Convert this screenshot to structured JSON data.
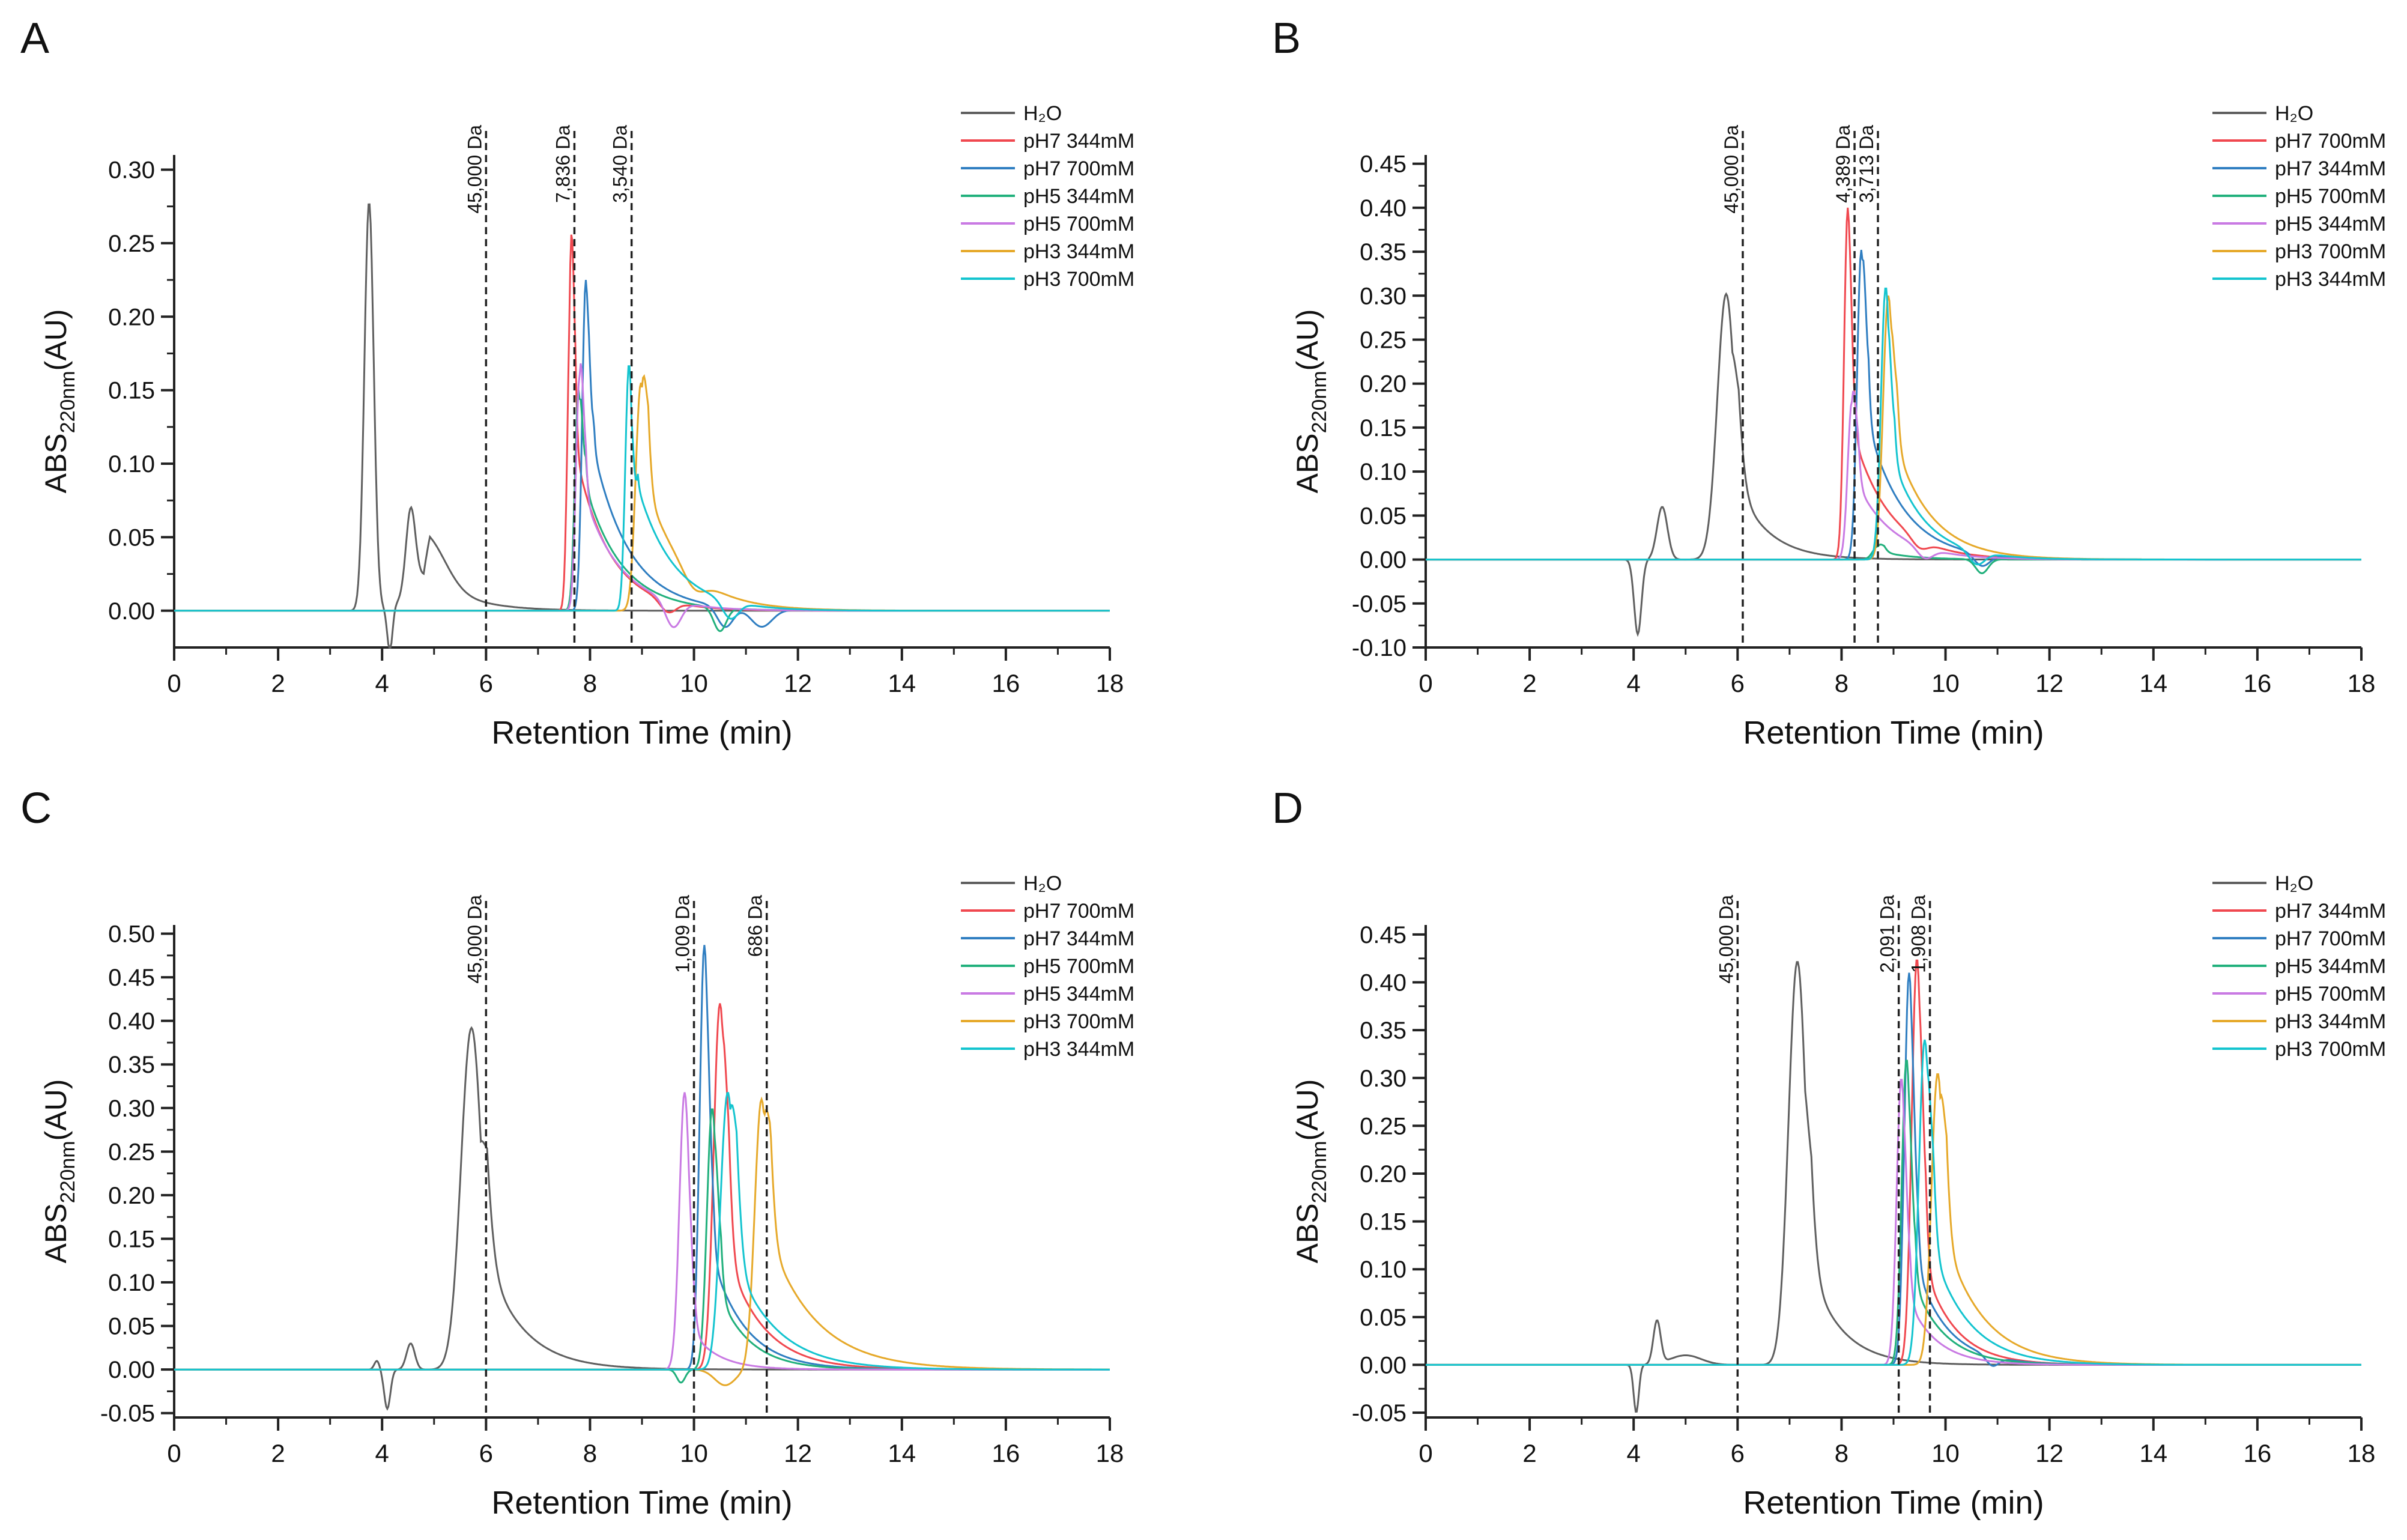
{
  "colors": {
    "H2O": "#5f5f5f",
    "red": "#f0484f",
    "blue": "#2f7ec1",
    "green": "#21b07c",
    "violet": "#c97ae3",
    "gold": "#e6a92a",
    "cyan": "#14c4cf"
  },
  "chart_data": [
    {
      "panel": "A",
      "type": "line",
      "xlabel": "Retention Time (min)",
      "ylabel_main": "ABS",
      "ylabel_sub": "220nm",
      "ylabel_unit": "(AU)",
      "xlim": [
        0,
        18
      ],
      "ylim": [
        -0.025,
        0.31
      ],
      "xticks": [
        0,
        2,
        4,
        6,
        8,
        10,
        12,
        14,
        16,
        18
      ],
      "yticks": [
        0.0,
        0.05,
        0.1,
        0.15,
        0.2,
        0.25,
        0.3
      ],
      "ytick_labels": [
        "0.00",
        "0.05",
        "0.10",
        "0.15",
        "0.20",
        "0.25",
        "0.30"
      ],
      "legend_position": "top-right",
      "grid": false,
      "markers": [
        {
          "x": 6.0,
          "label": "45,000 Da"
        },
        {
          "x": 7.7,
          "label": "7,836 Da"
        },
        {
          "x": 8.8,
          "label": "3,540 Da"
        }
      ],
      "series": [
        {
          "name": "H₂O",
          "color": "#5f5f5f",
          "peaks": [
            [
              3.75,
              0.278,
              0.09
            ],
            [
              4.55,
              0.055,
              0.09
            ],
            [
              4.9,
              0.025,
              0.35
            ]
          ],
          "dips": [
            [
              4.15,
              -0.03,
              0.05
            ]
          ],
          "tail": [
            4.8,
            0.03,
            0.7
          ],
          "noise": 0.0
        },
        {
          "name": "pH7 344mM",
          "color": "#f0484f",
          "peaks": [
            [
              7.63,
              0.218,
              0.06
            ]
          ],
          "tail": [
            7.6,
            0.13,
            0.65
          ],
          "dips": [
            [
              9.5,
              -0.008,
              0.15
            ]
          ]
        },
        {
          "name": "pH7 700mM",
          "color": "#2f7ec1",
          "peaks": [
            [
              7.92,
              0.225,
              0.07
            ]
          ],
          "tail": [
            7.95,
            0.13,
            0.7
          ],
          "dips": [
            [
              10.6,
              -0.014,
              0.15
            ],
            [
              11.3,
              -0.012,
              0.2
            ]
          ]
        },
        {
          "name": "pH5 344mM",
          "color": "#21b07c",
          "peaks": [
            [
              7.78,
              0.15,
              0.07
            ]
          ],
          "tail": [
            7.8,
            0.1,
            0.7
          ],
          "dips": [
            [
              10.5,
              -0.016,
              0.12
            ]
          ]
        },
        {
          "name": "pH5 700mM",
          "color": "#c97ae3",
          "peaks": [
            [
              7.8,
              0.16,
              0.07
            ]
          ],
          "tail": [
            7.8,
            0.09,
            0.7
          ],
          "dips": [
            [
              9.6,
              -0.018,
              0.15
            ]
          ]
        },
        {
          "name": "pH3 344mM",
          "color": "#e6a92a",
          "peaks": [
            [
              8.98,
              0.155,
              0.1
            ]
          ],
          "tail": [
            9.0,
            0.095,
            0.75
          ],
          "dips": [
            [
              10.0,
              -0.01,
              0.2
            ]
          ]
        },
        {
          "name": "pH3 700mM",
          "color": "#14c4cf",
          "peaks": [
            [
              8.75,
              0.168,
              0.07
            ]
          ],
          "tail": [
            8.8,
            0.1,
            0.7
          ],
          "dips": [
            [
              10.7,
              -0.012,
              0.15
            ]
          ]
        }
      ]
    },
    {
      "panel": "B",
      "type": "line",
      "xlabel": "Retention Time (min)",
      "ylabel_main": "ABS",
      "ylabel_sub": "220nm",
      "ylabel_unit": "(AU)",
      "xlim": [
        0,
        18
      ],
      "ylim": [
        -0.1,
        0.46
      ],
      "xticks": [
        0,
        2,
        4,
        6,
        8,
        10,
        12,
        14,
        16,
        18
      ],
      "yticks": [
        -0.1,
        -0.05,
        0.0,
        0.05,
        0.1,
        0.15,
        0.2,
        0.25,
        0.3,
        0.35,
        0.4,
        0.45
      ],
      "ytick_labels": [
        "-0.10",
        "-0.05",
        "0.00",
        "0.05",
        "0.10",
        "0.15",
        "0.20",
        "0.25",
        "0.30",
        "0.35",
        "0.40",
        "0.45"
      ],
      "legend_position": "top-right",
      "grid": false,
      "markers": [
        {
          "x": 6.1,
          "label": "45,000 Da"
        },
        {
          "x": 8.25,
          "label": "4,389 Da"
        },
        {
          "x": 8.7,
          "label": "3,713 Da"
        }
      ],
      "series": [
        {
          "name": "H₂O",
          "color": "#5f5f5f",
          "peaks": [
            [
              5.78,
              0.302,
              0.17
            ],
            [
              4.55,
              0.06,
              0.1
            ]
          ],
          "dips": [
            [
              4.08,
              -0.085,
              0.07
            ]
          ],
          "tail": [
            5.9,
            0.1,
            0.6
          ]
        },
        {
          "name": "pH7 700mM",
          "color": "#f0484f",
          "peaks": [
            [
              8.12,
              0.4,
              0.07
            ]
          ],
          "tail": [
            8.15,
            0.16,
            0.7
          ],
          "dips": [
            [
              9.5,
              -0.01,
              0.15
            ]
          ]
        },
        {
          "name": "pH7 344mM",
          "color": "#2f7ec1",
          "peaks": [
            [
              8.38,
              0.352,
              0.08
            ]
          ],
          "tail": [
            8.4,
            0.18,
            0.7
          ],
          "dips": [
            [
              10.7,
              -0.014,
              0.15
            ]
          ]
        },
        {
          "name": "pH5 700mM",
          "color": "#21b07c",
          "peaks": [
            [
              8.7,
              0.015,
              0.1
            ]
          ],
          "tail": [
            8.7,
            0.01,
            0.6
          ],
          "dips": [
            [
              10.7,
              -0.016,
              0.12
            ]
          ]
        },
        {
          "name": "pH5 344mM",
          "color": "#c97ae3",
          "peaks": [
            [
              8.2,
              0.18,
              0.08
            ]
          ],
          "tail": [
            8.2,
            0.1,
            0.7
          ],
          "dips": [
            [
              9.6,
              -0.012,
              0.15
            ]
          ]
        },
        {
          "name": "pH3 700mM",
          "color": "#e6a92a",
          "peaks": [
            [
              8.9,
              0.3,
              0.1
            ]
          ],
          "tail": [
            8.95,
            0.15,
            0.7
          ],
          "dips": []
        },
        {
          "name": "pH3 344mM",
          "color": "#14c4cf",
          "peaks": [
            [
              8.85,
              0.31,
              0.09
            ]
          ],
          "tail": [
            8.9,
            0.13,
            0.65
          ],
          "dips": [
            [
              10.6,
              -0.015,
              0.15
            ]
          ]
        }
      ]
    },
    {
      "panel": "C",
      "type": "line",
      "xlabel": "Retention Time (min)",
      "ylabel_main": "ABS",
      "ylabel_sub": "220nm",
      "ylabel_unit": "(AU)",
      "xlim": [
        0,
        18
      ],
      "ylim": [
        -0.055,
        0.51
      ],
      "xticks": [
        0,
        2,
        4,
        6,
        8,
        10,
        12,
        14,
        16,
        18
      ],
      "yticks": [
        -0.05,
        0.0,
        0.05,
        0.1,
        0.15,
        0.2,
        0.25,
        0.3,
        0.35,
        0.4,
        0.45,
        0.5
      ],
      "ytick_labels": [
        "-0.05",
        "0.00",
        "0.05",
        "0.10",
        "0.15",
        "0.20",
        "0.25",
        "0.30",
        "0.35",
        "0.40",
        "0.45",
        "0.50"
      ],
      "legend_position": "top-right",
      "grid": false,
      "markers": [
        {
          "x": 6.0,
          "label": "45,000 Da"
        },
        {
          "x": 10.0,
          "label": "1,009 Da"
        },
        {
          "x": 11.4,
          "label": "686 Da"
        }
      ],
      "series": [
        {
          "name": "H₂O",
          "color": "#5f5f5f",
          "peaks": [
            [
              5.72,
              0.392,
              0.2
            ],
            [
              4.55,
              0.03,
              0.08
            ],
            [
              3.9,
              0.01,
              0.05
            ]
          ],
          "dips": [
            [
              4.1,
              -0.045,
              0.06
            ]
          ],
          "tail": [
            5.9,
            0.15,
            0.7
          ]
        },
        {
          "name": "pH7 700mM",
          "color": "#f0484f",
          "peaks": [
            [
              10.5,
              0.42,
              0.12
            ]
          ],
          "tail": [
            10.55,
            0.15,
            0.7
          ],
          "dips": []
        },
        {
          "name": "pH7 344mM",
          "color": "#2f7ec1",
          "peaks": [
            [
              10.2,
              0.487,
              0.09
            ]
          ],
          "tail": [
            10.25,
            0.15,
            0.65
          ],
          "dips": []
        },
        {
          "name": "pH5 700mM",
          "color": "#21b07c",
          "peaks": [
            [
              10.35,
              0.3,
              0.1
            ]
          ],
          "tail": [
            10.4,
            0.1,
            0.6
          ],
          "dips": [
            [
              9.75,
              -0.015,
              0.08
            ]
          ]
        },
        {
          "name": "pH5 344mM",
          "color": "#c97ae3",
          "peaks": [
            [
              9.82,
              0.318,
              0.1
            ]
          ],
          "tail": [
            9.9,
            0.05,
            0.5
          ],
          "dips": []
        },
        {
          "name": "pH3 700mM",
          "color": "#e6a92a",
          "peaks": [
            [
              11.3,
              0.31,
              0.13
            ]
          ],
          "tail": [
            11.35,
            0.17,
            0.9
          ],
          "dips": [
            [
              10.6,
              -0.018,
              0.2
            ]
          ]
        },
        {
          "name": "pH3 344mM",
          "color": "#14c4cf",
          "peaks": [
            [
              10.65,
              0.318,
              0.14
            ]
          ],
          "tail": [
            10.7,
            0.14,
            0.8
          ],
          "dips": []
        }
      ]
    },
    {
      "panel": "D",
      "type": "line",
      "xlabel": "Retention Time (min)",
      "ylabel_main": "ABS",
      "ylabel_sub": "220nm",
      "ylabel_unit": "(AU)",
      "xlim": [
        0,
        18
      ],
      "ylim": [
        -0.055,
        0.46
      ],
      "xticks": [
        0,
        2,
        4,
        6,
        8,
        10,
        12,
        14,
        16,
        18
      ],
      "yticks": [
        -0.05,
        0.0,
        0.05,
        0.1,
        0.15,
        0.2,
        0.25,
        0.3,
        0.35,
        0.4,
        0.45
      ],
      "ytick_labels": [
        "-0.05",
        "0.00",
        "0.05",
        "0.10",
        "0.15",
        "0.20",
        "0.25",
        "0.30",
        "0.35",
        "0.40",
        "0.45"
      ],
      "legend_position": "top-right",
      "grid": false,
      "markers": [
        {
          "x": 6.0,
          "label": "45,000 Da"
        },
        {
          "x": 9.1,
          "label": "2,091 Da"
        },
        {
          "x": 9.7,
          "label": "1,908 Da"
        }
      ],
      "series": [
        {
          "name": "H₂O",
          "color": "#5f5f5f",
          "peaks": [
            [
              7.15,
              0.422,
              0.17
            ],
            [
              4.45,
              0.045,
              0.07
            ],
            [
              5.0,
              0.01,
              0.3
            ]
          ],
          "dips": [
            [
              4.05,
              -0.05,
              0.05
            ]
          ],
          "tail": [
            7.3,
            0.12,
            0.6
          ]
        },
        {
          "name": "pH7 344mM",
          "color": "#f0484f",
          "peaks": [
            [
              9.45,
              0.425,
              0.1
            ]
          ],
          "tail": [
            9.5,
            0.12,
            0.6
          ],
          "dips": []
        },
        {
          "name": "pH7 700mM",
          "color": "#2f7ec1",
          "peaks": [
            [
              9.3,
              0.41,
              0.09
            ]
          ],
          "tail": [
            9.35,
            0.12,
            0.6
          ],
          "dips": [
            [
              10.9,
              -0.01,
              0.12
            ]
          ]
        },
        {
          "name": "pH5 344mM",
          "color": "#21b07c",
          "peaks": [
            [
              9.25,
              0.32,
              0.09
            ]
          ],
          "tail": [
            9.3,
            0.1,
            0.6
          ],
          "dips": []
        },
        {
          "name": "pH5 700mM",
          "color": "#c97ae3",
          "peaks": [
            [
              9.15,
              0.3,
              0.09
            ]
          ],
          "tail": [
            9.2,
            0.08,
            0.55
          ],
          "dips": []
        },
        {
          "name": "pH3 344mM",
          "color": "#e6a92a",
          "peaks": [
            [
              9.85,
              0.305,
              0.12
            ]
          ],
          "tail": [
            9.9,
            0.15,
            0.75
          ],
          "dips": []
        },
        {
          "name": "pH3 700mM",
          "color": "#14c4cf",
          "peaks": [
            [
              9.6,
              0.34,
              0.11
            ]
          ],
          "tail": [
            9.65,
            0.14,
            0.7
          ],
          "dips": []
        }
      ]
    }
  ]
}
